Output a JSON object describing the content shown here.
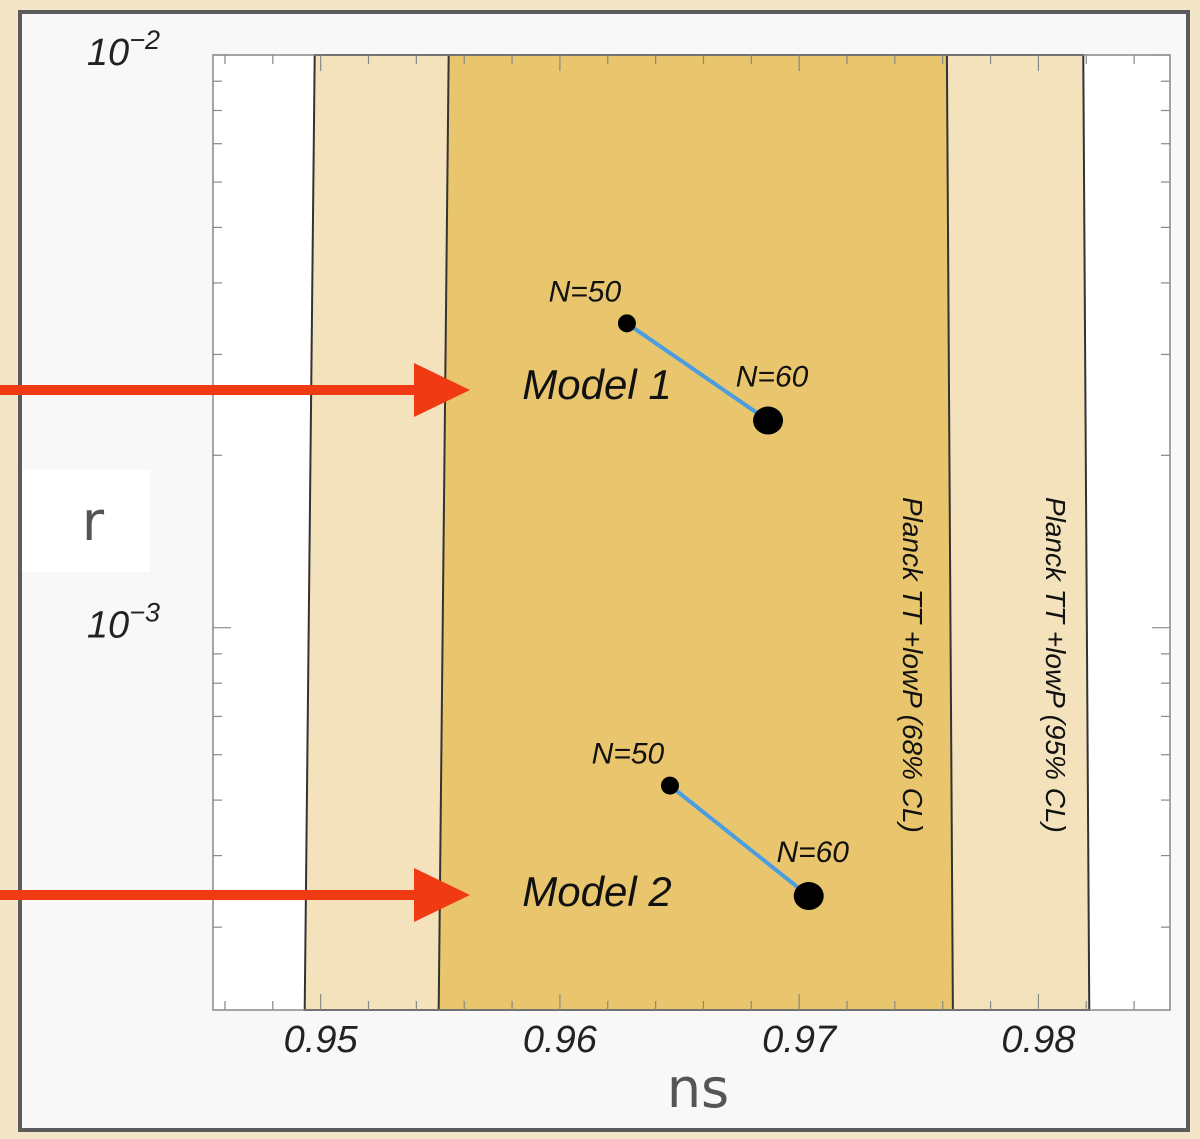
{
  "chart_data": {
    "type": "scatter",
    "title": "",
    "xlabel": "ns",
    "ylabel": "r",
    "xlim": [
      0.9455,
      0.9855
    ],
    "ylim": [
      0.000215,
      0.01
    ],
    "yscale": "log",
    "x_ticks": [
      {
        "value": 0.95,
        "label": "0.95"
      },
      {
        "value": 0.96,
        "label": "0.96"
      },
      {
        "value": 0.97,
        "label": "0.97"
      },
      {
        "value": 0.98,
        "label": "0.98"
      }
    ],
    "y_ticks": [
      {
        "value": 0.01,
        "base": "10",
        "exp": "−2"
      },
      {
        "value": 0.001,
        "base": "10",
        "exp": "−3"
      }
    ],
    "bands": [
      {
        "label": "Planck TT +lowP (95% CL)",
        "x_range": [
          0.9495,
          0.982
        ],
        "color": "#f4e2bd"
      },
      {
        "label": "Planck TT +lowP (68% CL)",
        "x_range": [
          0.9551,
          0.9763
        ],
        "color": "#e9c66d"
      }
    ],
    "series": [
      {
        "name": "Model 1",
        "points": [
          {
            "label": "N=50",
            "x": 0.9628,
            "r": 0.0034
          },
          {
            "label": "N=60",
            "x": 0.9687,
            "r": 0.0023
          }
        ]
      },
      {
        "name": "Model 2",
        "points": [
          {
            "label": "N=50",
            "x": 0.9646,
            "r": 0.00053
          },
          {
            "label": "N=60",
            "x": 0.9704,
            "r": 0.00034
          }
        ]
      }
    ],
    "colors": {
      "line": "#4a9de0",
      "marker": "#000000",
      "arrow": "#f03a14",
      "band_95": "#f4e2bd",
      "band_68": "#e9c66d"
    }
  }
}
